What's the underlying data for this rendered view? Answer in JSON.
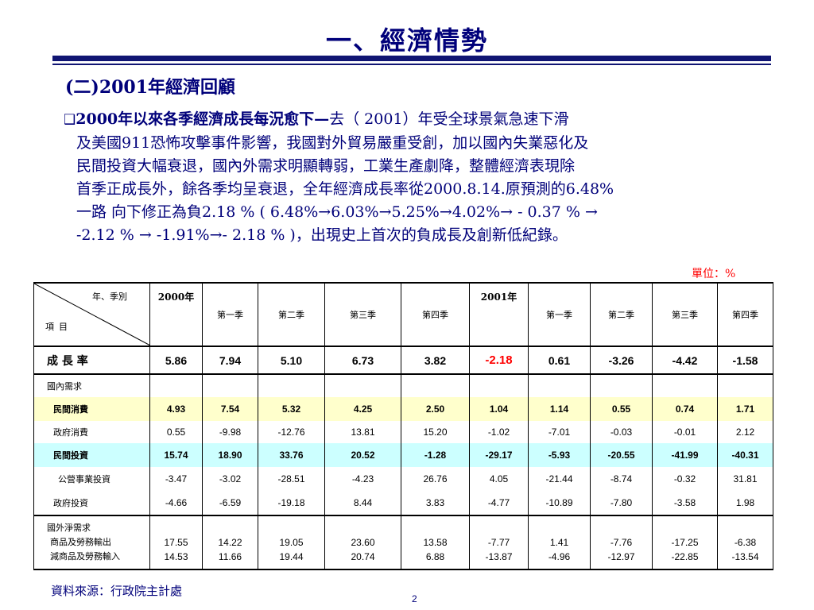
{
  "title": "一、經濟情勢",
  "subtitle": "(二)2001年經濟回顧",
  "paragraph": {
    "bullet": "❑",
    "bold_lead": "2000年以來各季經濟成長每況愈下—",
    "line1_rest": "去（ 2001）年受全球景氣急速下滑",
    "line2": "及美國911恐怖攻擊事件影響，我國對外貿易嚴重受創，加以國內失業惡化及",
    "line3": "民間投資大幅衰退，國內外需求明顯轉弱，工業生產劇降，整體經濟表現除",
    "line4": "首季正成長外，餘各季均呈衰退，全年經濟成長率從2000.8.14.原預測的6.48%",
    "line5": "一路 向下修正為負2.18 % ( 6.48%→6.03%→5.25%→4.02%→ - 0.37 % →",
    "line6": "-2.12 % → -1.91%→- 2.18 % )，出現史上首次的負成長及創新低紀錄。"
  },
  "unit_label": "單位：%",
  "table": {
    "corner_top": "年、季別",
    "corner_bottom": "項目",
    "columns": [
      "2000年",
      "第一季",
      "第二季",
      "第三季",
      "第四季",
      "2001年",
      "第一季",
      "第二季",
      "第三季",
      "第四季"
    ],
    "growth": {
      "label": "成 長 率",
      "values": [
        "5.86",
        "7.94",
        "5.10",
        "6.73",
        "3.82",
        "-2.18",
        "0.61",
        "-3.26",
        "-4.42",
        "-1.58"
      ]
    },
    "domestic_header": "國內需求",
    "rows": [
      {
        "label": "民間消費",
        "values": [
          "4.93",
          "7.54",
          "5.32",
          "4.25",
          "2.50",
          "1.04",
          "1.14",
          "0.55",
          "0.74",
          "1.71"
        ]
      },
      {
        "label": "政府消費",
        "values": [
          "0.55",
          "-9.98",
          "-12.76",
          "13.81",
          "15.20",
          "-1.02",
          "-7.01",
          "-0.03",
          "-0.01",
          "2.12"
        ]
      },
      {
        "label": "民間投資",
        "values": [
          "15.74",
          "18.90",
          "33.76",
          "20.52",
          "-1.28",
          "-29.17",
          "-5.93",
          "-20.55",
          "-41.99",
          "-40.31"
        ]
      },
      {
        "label": "公營事業投資",
        "values": [
          "-3.47",
          "-3.02",
          "-28.51",
          "-4.23",
          "26.76",
          "4.05",
          "-21.44",
          "-8.74",
          "-0.32",
          "31.81"
        ]
      },
      {
        "label": "政府投資",
        "values": [
          "-4.66",
          "-6.59",
          "-19.18",
          "8.44",
          "3.83",
          "-4.77",
          "-10.89",
          "-7.80",
          "-3.58",
          "1.98"
        ]
      }
    ],
    "foreign": {
      "header": "國外淨需求",
      "export_label": "商品及勞務輸出",
      "import_label": "減商品及勞務輸入",
      "exports": [
        "17.55",
        "14.22",
        "19.05",
        "23.60",
        "13.58",
        "-7.77",
        "1.41",
        "-7.76",
        "-17.25",
        "-6.38"
      ],
      "imports": [
        "14.53",
        "11.66",
        "19.44",
        "20.74",
        "6.88",
        "-13.87",
        "-4.96",
        "-12.97",
        "-22.85",
        "-13.54"
      ]
    }
  },
  "source": "資料來源：行政院主計處",
  "page_number": "2",
  "colors": {
    "navy": "#00007a",
    "rule": "#101573",
    "red": "#ff0000",
    "yellow_row": "#ffffcc",
    "cyan_row": "#ccffff"
  }
}
